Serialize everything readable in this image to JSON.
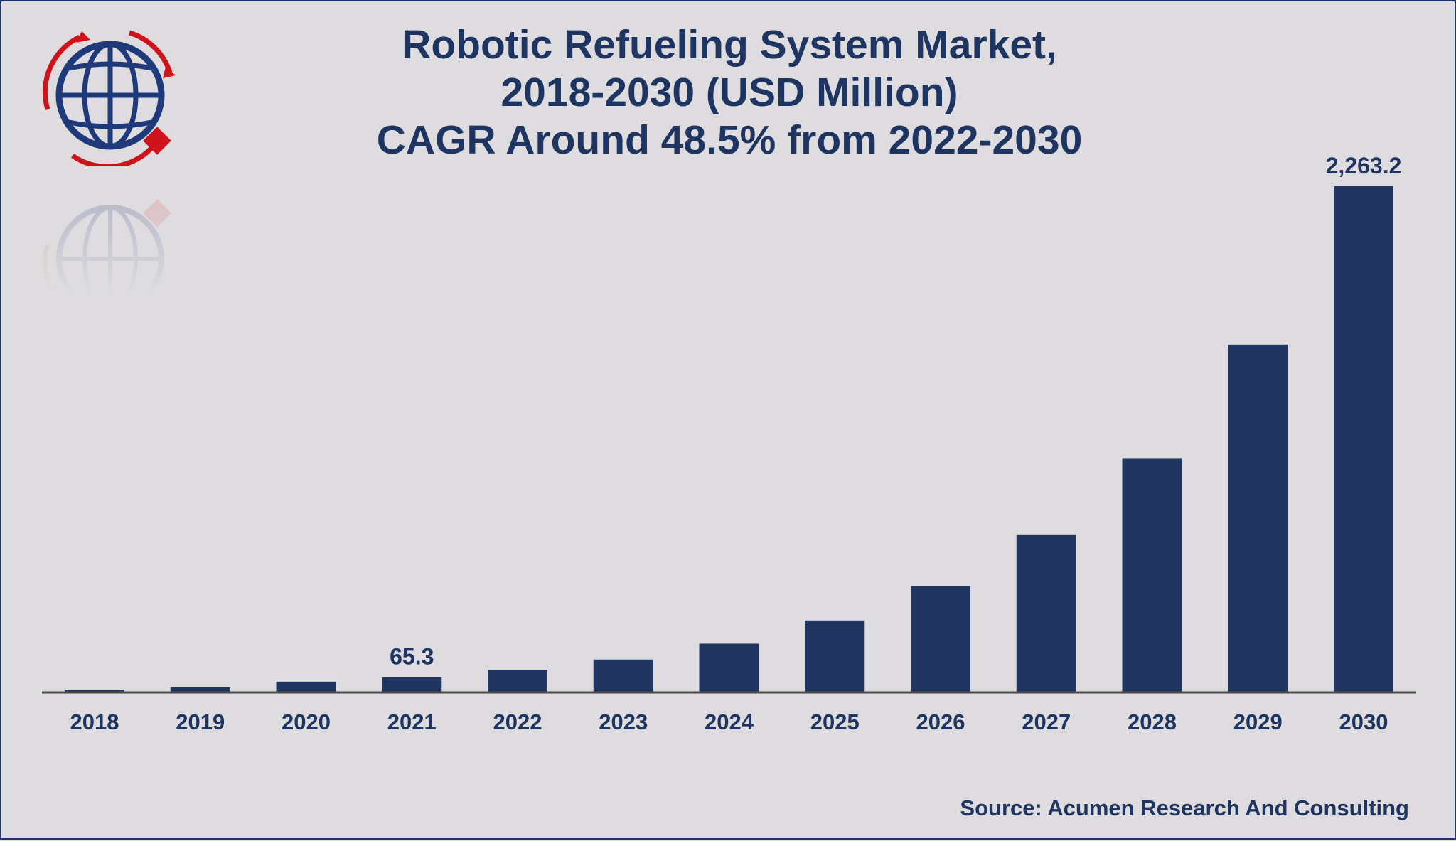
{
  "title_lines": [
    "Robotic Refueling System Market,",
    "2018-2030 (USD Million)",
    "CAGR Around 48.5% from 2022-2030"
  ],
  "source": "Source: Acumen Research And Consulting",
  "colors": {
    "bar": "#203661",
    "text": "#1f3561",
    "axis": "#4a4a4a",
    "logo_red": "#d0121b",
    "logo_blue": "#1f3a7a"
  },
  "logo": {
    "icon": "globe-logo-icon"
  },
  "chart_data": {
    "type": "bar",
    "title": "Robotic Refueling System Market, 2018-2030 (USD Million) CAGR Around 48.5% from 2022-2030",
    "xlabel": "",
    "ylabel": "",
    "categories": [
      "2018",
      "2019",
      "2020",
      "2021",
      "2022",
      "2023",
      "2024",
      "2025",
      "2026",
      "2027",
      "2028",
      "2029",
      "2030"
    ],
    "values": [
      8,
      20,
      45,
      65.3,
      97,
      144,
      215,
      319,
      474,
      704,
      1046,
      1554,
      2263.2
    ],
    "data_labels": [
      {
        "index": 3,
        "text": "65.3"
      },
      {
        "index": 12,
        "text": "2,263.2"
      }
    ],
    "ylim": [
      0,
      2263.2
    ],
    "grid": false,
    "legend": "none"
  }
}
